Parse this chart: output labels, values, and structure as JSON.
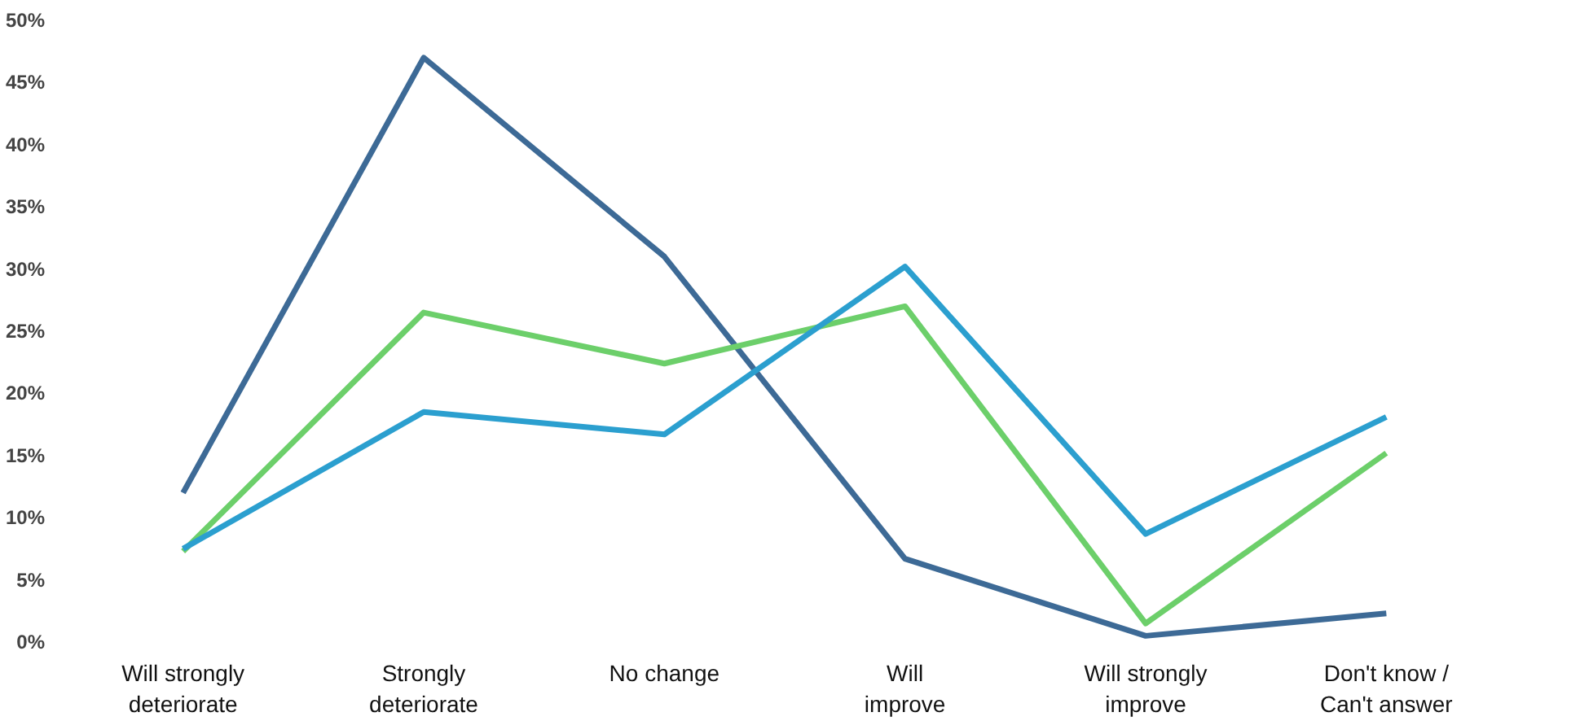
{
  "chart_data": {
    "type": "line",
    "categories": [
      "Will strongly\ndeteriorate",
      "Strongly\ndeteriorate",
      "No change",
      "Will\nimprove",
      "Will strongly\nimprove",
      "Don't know /\nCan't answer"
    ],
    "series": [
      {
        "color": "#3d6a96",
        "values": [
          12,
          47,
          31,
          6.7,
          0.5,
          2.3
        ]
      },
      {
        "color": "#6ccf6a",
        "values": [
          7.3,
          26.5,
          22.4,
          27,
          1.5,
          15.2
        ]
      },
      {
        "color": "#2b9fcf",
        "values": [
          7.5,
          18.5,
          16.7,
          30.2,
          8.7,
          18.1
        ]
      }
    ],
    "ylim": [
      0,
      50
    ],
    "yticks": [
      {
        "value": 0,
        "label": "0%"
      },
      {
        "value": 5,
        "label": "5%"
      },
      {
        "value": 10,
        "label": "10%"
      },
      {
        "value": 15,
        "label": "15%"
      },
      {
        "value": 20,
        "label": "20%"
      },
      {
        "value": 25,
        "label": "25%"
      },
      {
        "value": 30,
        "label": "30%"
      },
      {
        "value": 35,
        "label": "35%"
      },
      {
        "value": 40,
        "label": "40%"
      },
      {
        "value": 45,
        "label": "45%"
      },
      {
        "value": 50,
        "label": "50%"
      }
    ],
    "grid": false,
    "marker": "none",
    "line_style": "solid"
  }
}
